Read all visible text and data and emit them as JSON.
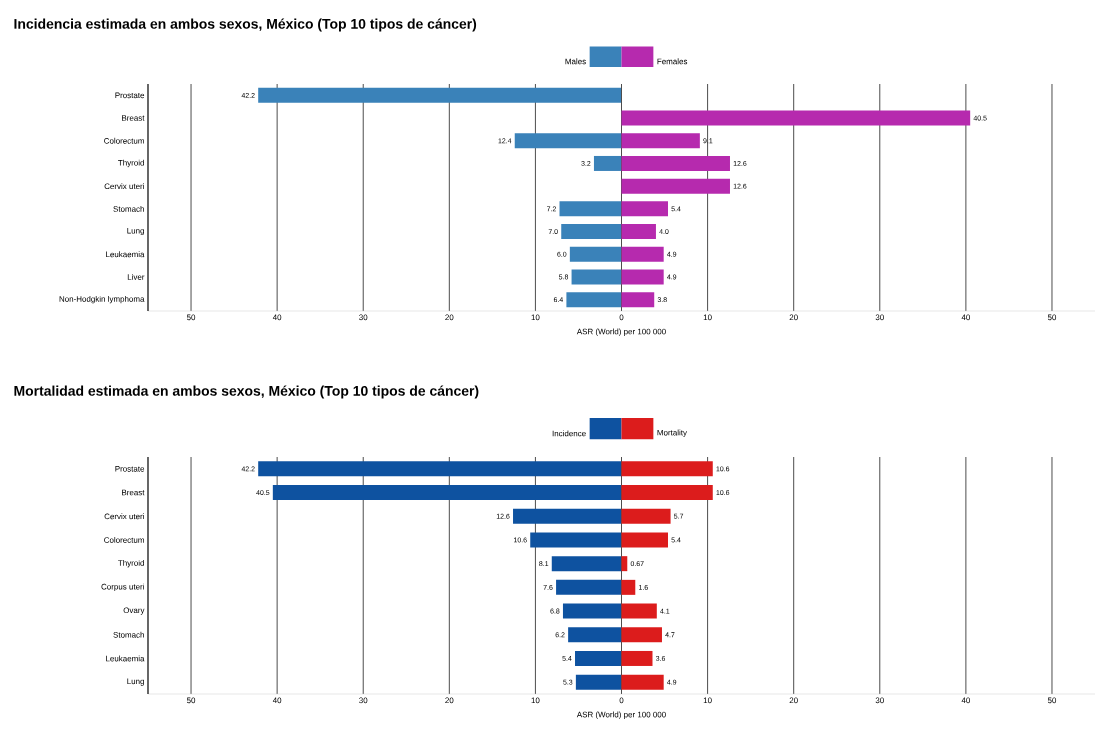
{
  "chart_data": [
    {
      "type": "bar",
      "orientation": "horizontal",
      "title": "Incidencia estimada en ambos sexos, México (Top 10 tipos de cáncer)",
      "xlabel": "ASR (World) per 100 000",
      "legend": "top",
      "grid": "x",
      "categories": [
        "Prostate",
        "Breast",
        "Colorectum",
        "Thyroid",
        "Cervix uteri",
        "Stomach",
        "Lung",
        "Leukaemia",
        "Liver",
        "Non-Hodgkin lymphoma"
      ],
      "series": [
        {
          "name": "Males",
          "color": "#3a82b9",
          "values": [
            42.2,
            null,
            12.4,
            3.2,
            null,
            7.2,
            7.0,
            6.0,
            5.8,
            6.4
          ],
          "value_labels": [
            "42.2",
            null,
            "12.4",
            "3.2",
            null,
            "7.2",
            "7.0",
            "6.0",
            "5.8",
            "6.4"
          ]
        }
      ],
      "xlim": [
        55,
        0
      ],
      "xticks": [
        50,
        40,
        30,
        20,
        10
      ]
    },
    {
      "type": "bar",
      "orientation": "horizontal",
      "legend": "top",
      "grid": "x",
      "tick_labels": "x",
      "categories": [
        null,
        null,
        null,
        null,
        null,
        null,
        null,
        null,
        null,
        null
      ],
      "series": [
        {
          "name": "Females",
          "color": "#b62aae",
          "values": [
            null,
            40.5,
            9.1,
            12.6,
            12.6,
            5.4,
            4.0,
            4.9,
            4.9,
            3.8
          ],
          "value_labels": [
            null,
            "40.5",
            "9.1",
            "12.6",
            "12.6",
            "5.4",
            "4.0",
            "4.9",
            "4.9",
            "3.8"
          ]
        }
      ],
      "xlim": [
        0,
        55
      ],
      "xticks": [
        0,
        10,
        20,
        30,
        40,
        50
      ]
    },
    {
      "type": "bar",
      "orientation": "horizontal",
      "title": "Mortalidad estimada en ambos sexos, México (Top 10 tipos de cáncer)",
      "xlabel": "ASR (World) per 100 000",
      "legend": "top",
      "grid": "x",
      "categories": [
        "Prostate",
        "Breast",
        "Cervix uteri",
        "Colorectum",
        "Thyroid",
        "Corpus uteri",
        "Ovary",
        "Stomach",
        "Leukaemia",
        "Lung"
      ],
      "series": [
        {
          "name": "Incidence",
          "color": "#0e52a0",
          "values": [
            42.2,
            40.5,
            12.6,
            10.6,
            8.1,
            7.6,
            6.8,
            6.2,
            5.4,
            5.3
          ],
          "value_labels": [
            "42.2",
            "40.5",
            "12.6",
            "10.6",
            "8.1",
            "7.6",
            "6.8",
            "6.2",
            "5.4",
            "5.3"
          ]
        }
      ],
      "xlim": [
        55,
        0
      ],
      "xticks": [
        50,
        40,
        30,
        20,
        10
      ]
    },
    {
      "type": "bar",
      "orientation": "horizontal",
      "legend": "top",
      "grid": "x",
      "tick_labels": "x",
      "categories": [
        null,
        null,
        null,
        null,
        null,
        null,
        null,
        null,
        null,
        null
      ],
      "series": [
        {
          "name": "Mortality",
          "color": "#dc1c1c",
          "values": [
            10.6,
            10.6,
            5.7,
            5.4,
            0.67,
            1.6,
            4.1,
            4.7,
            3.6,
            4.9
          ],
          "value_labels": [
            "10.6",
            "10.6",
            "5.7",
            "5.4",
            "0.67",
            "1.6",
            "4.1",
            "4.7",
            "3.6",
            "4.9"
          ]
        }
      ],
      "xlim": [
        0,
        55
      ],
      "xticks": [
        0,
        10,
        20,
        30,
        40,
        50
      ]
    }
  ]
}
